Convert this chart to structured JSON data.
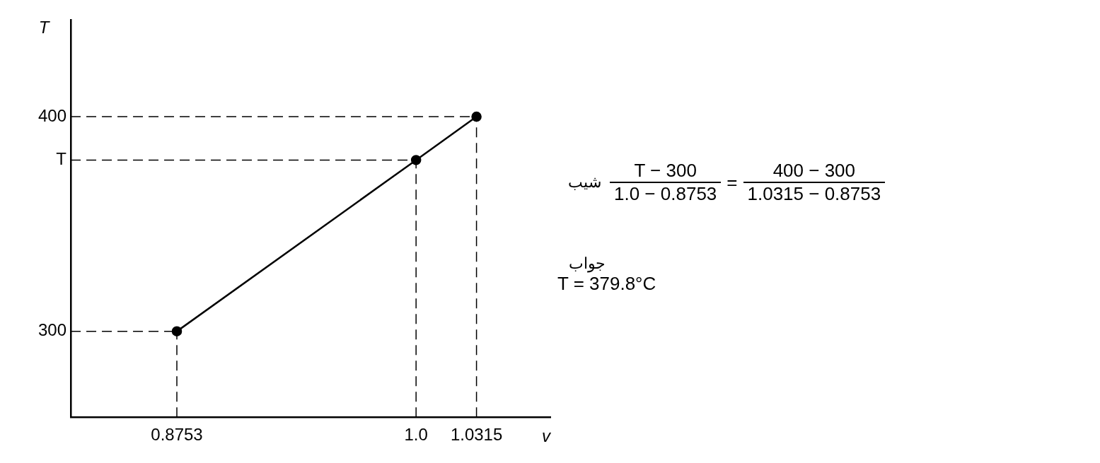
{
  "chart_data": {
    "type": "line",
    "xlabel": "v",
    "ylabel": "T",
    "x": [
      0.8753,
      1.0,
      1.0315
    ],
    "series": [
      {
        "color": "#000000",
        "values": [
          300,
          379.8,
          400
        ]
      }
    ],
    "xlim": [
      0.82,
      1.07
    ],
    "xticks": [
      0.8753,
      {
        "value": 1.0,
        "label": "1.0"
      },
      1.0315
    ],
    "ylim": [
      260,
      445
    ],
    "yticks": [
      300,
      {
        "value": 379.8,
        "label": "T"
      },
      400
    ],
    "grid": false,
    "legend": false,
    "marker": "circle",
    "line_style": "solid",
    "ref_lines": [
      {
        "axis": "x",
        "value": 0.8753,
        "line_style": "dashed"
      },
      {
        "axis": "x",
        "value": 1.0,
        "line_style": "dashed"
      },
      {
        "axis": "x",
        "value": 1.0315,
        "line_style": "dashed"
      },
      {
        "axis": "y",
        "value": 300,
        "line_style": "dashed"
      },
      {
        "axis": "y",
        "value": 379.8,
        "line_style": "dashed"
      },
      {
        "axis": "y",
        "value": 400,
        "line_style": "dashed"
      }
    ],
    "annotations": [
      "شیب",
      "T − 300",
      "1.0 − 0.8753",
      "=",
      "400 − 300",
      "1.0315 − 0.8753",
      "جواب",
      "T = 379.8°C"
    ]
  }
}
